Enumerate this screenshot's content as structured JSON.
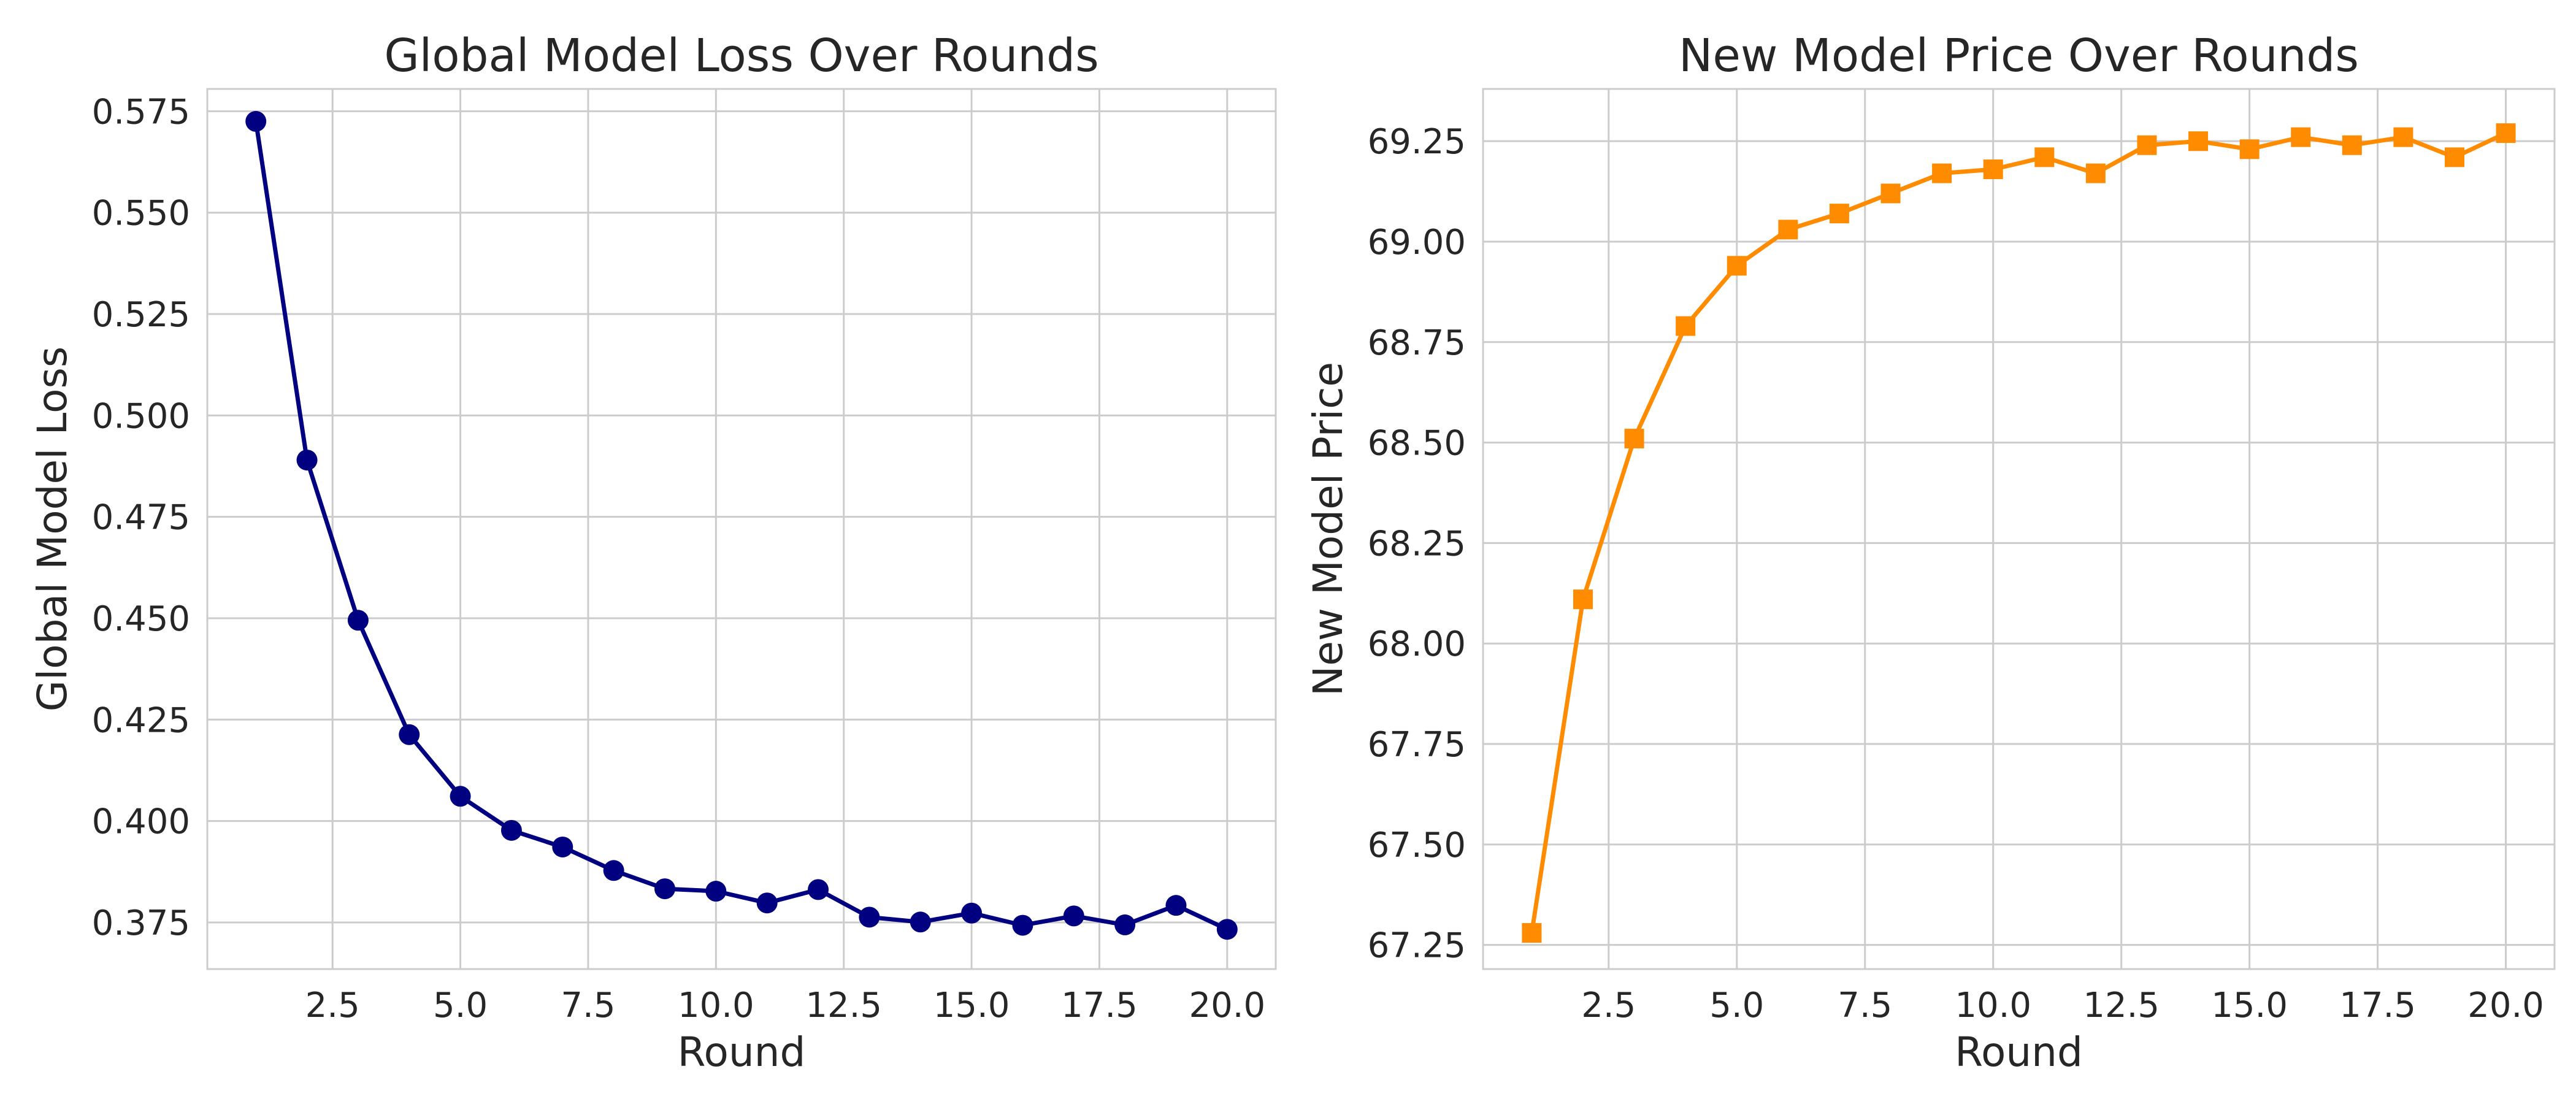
{
  "chart_data": [
    {
      "type": "line",
      "title": "Global Model Loss Over Rounds",
      "xlabel": "Round",
      "ylabel": "Global Model Loss",
      "xlim": [
        0.05,
        20.95
      ],
      "ylim": [
        0.3635,
        0.5805
      ],
      "xticks": [
        2.5,
        5.0,
        7.5,
        10.0,
        12.5,
        15.0,
        17.5,
        20.0
      ],
      "xtick_labels": [
        "2.5",
        "5.0",
        "7.5",
        "10.0",
        "12.5",
        "15.0",
        "17.5",
        "20.0"
      ],
      "yticks": [
        0.375,
        0.4,
        0.425,
        0.45,
        0.475,
        0.5,
        0.525,
        0.55,
        0.575
      ],
      "ytick_labels": [
        "0.375",
        "0.400",
        "0.425",
        "0.450",
        "0.475",
        "0.500",
        "0.525",
        "0.550",
        "0.575"
      ],
      "grid": true,
      "color": "#000080",
      "marker": "circle",
      "x": [
        1,
        2,
        3,
        4,
        5,
        6,
        7,
        8,
        9,
        10,
        11,
        12,
        13,
        14,
        15,
        16,
        17,
        18,
        19,
        20
      ],
      "y": [
        0.5725,
        0.489,
        0.4495,
        0.4213,
        0.4061,
        0.3977,
        0.3936,
        0.3878,
        0.3833,
        0.3827,
        0.3798,
        0.3831,
        0.3763,
        0.3751,
        0.3773,
        0.3743,
        0.3766,
        0.3744,
        0.3792,
        0.3733
      ]
    },
    {
      "type": "line",
      "title": "New Model Price Over Rounds",
      "xlabel": "Round",
      "ylabel": "New Model Price",
      "xlim": [
        0.05,
        20.95
      ],
      "ylim": [
        67.19,
        69.38
      ],
      "xticks": [
        2.5,
        5.0,
        7.5,
        10.0,
        12.5,
        15.0,
        17.5,
        20.0
      ],
      "xtick_labels": [
        "2.5",
        "5.0",
        "7.5",
        "10.0",
        "12.5",
        "15.0",
        "17.5",
        "20.0"
      ],
      "yticks": [
        67.25,
        67.5,
        67.75,
        68.0,
        68.25,
        68.5,
        68.75,
        69.0,
        69.25
      ],
      "ytick_labels": [
        "67.25",
        "67.50",
        "67.75",
        "68.00",
        "68.25",
        "68.50",
        "68.75",
        "69.00",
        "69.25"
      ],
      "grid": true,
      "color": "#ff8c00",
      "marker": "square",
      "x": [
        1,
        2,
        3,
        4,
        5,
        6,
        7,
        8,
        9,
        10,
        11,
        12,
        13,
        14,
        15,
        16,
        17,
        18,
        19,
        20
      ],
      "y": [
        67.28,
        68.11,
        68.51,
        68.79,
        68.94,
        69.03,
        69.07,
        69.12,
        69.17,
        69.18,
        69.21,
        69.17,
        69.24,
        69.25,
        69.23,
        69.26,
        69.24,
        69.26,
        69.21,
        69.27
      ]
    }
  ]
}
